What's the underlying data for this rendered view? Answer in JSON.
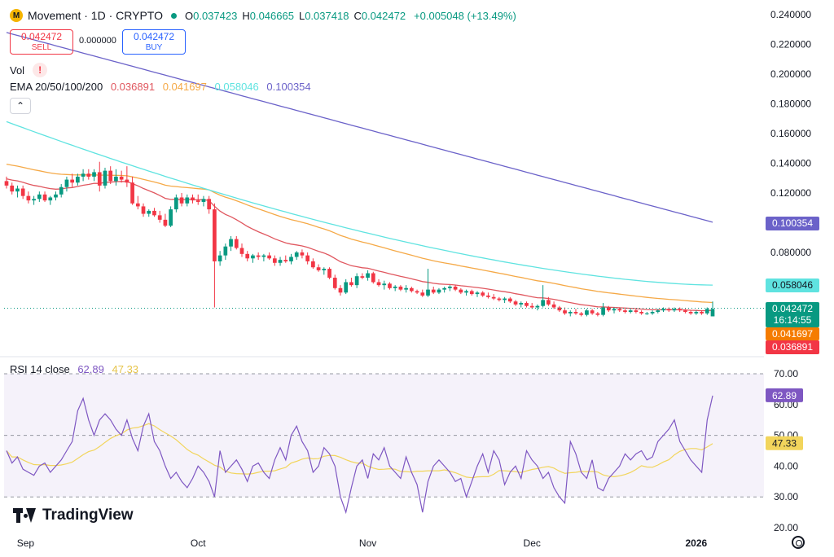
{
  "header": {
    "title": "Movement · 1D · CRYPTO",
    "open_label": "O",
    "open": "0.037423",
    "high_label": "H",
    "high": "0.046665",
    "low_label": "L",
    "low": "0.037418",
    "close_label": "C",
    "close": "0.042472",
    "change": "+0.005048 (+13.49%)",
    "logo_icon": "movement-logo-icon",
    "status_color": "#089981"
  },
  "trade": {
    "sell_price": "0.042472",
    "sell_label": "SELL",
    "spread": "0.000000",
    "buy_price": "0.042472",
    "buy_label": "BUY"
  },
  "volume": {
    "label": "Vol",
    "warning_icon": "!"
  },
  "ema_legend": {
    "label": "EMA 20/50/100/200",
    "v20": "0.036891",
    "v50": "0.041697",
    "v100": "0.058046",
    "v200": "0.100354"
  },
  "collapse_icon": "⌃",
  "rsi_legend": {
    "label": "RSI 14 close",
    "value": "62.89",
    "ma": "47.33"
  },
  "brand": "TradingView",
  "colors": {
    "up": "#089981",
    "down": "#f23645",
    "ema20": "#e0575f",
    "ema50": "#f5a947",
    "ema100": "#5fe3e0",
    "ema200": "#6b62c9",
    "rsi": "#7e57c2",
    "rsi_ma": "#f2d55c"
  },
  "chart_data": [
    {
      "type": "candlestick",
      "title": "Movement · 1D · CRYPTO",
      "x_ticks": [
        "Sep",
        "Oct",
        "Nov",
        "Dec",
        "2026"
      ],
      "y_ticks": [
        "0.240000",
        "0.220000",
        "0.200000",
        "0.180000",
        "0.160000",
        "0.140000",
        "0.120000",
        "0.100000",
        "0.080000"
      ],
      "ylim": [
        0.02,
        0.24
      ],
      "grid": false,
      "last_price_label": "0.042472",
      "countdown": "16:14:55",
      "ohlc_daily": [
        [
          0.128,
          0.131,
          0.123,
          0.125
        ],
        [
          0.125,
          0.127,
          0.119,
          0.121
        ],
        [
          0.121,
          0.125,
          0.117,
          0.123
        ],
        [
          0.123,
          0.125,
          0.116,
          0.118
        ],
        [
          0.118,
          0.121,
          0.113,
          0.115
        ],
        [
          0.115,
          0.118,
          0.112,
          0.116
        ],
        [
          0.116,
          0.121,
          0.114,
          0.119
        ],
        [
          0.119,
          0.121,
          0.114,
          0.115
        ],
        [
          0.115,
          0.118,
          0.112,
          0.117
        ],
        [
          0.117,
          0.121,
          0.115,
          0.119
        ],
        [
          0.119,
          0.126,
          0.117,
          0.124
        ],
        [
          0.124,
          0.131,
          0.121,
          0.129
        ],
        [
          0.129,
          0.133,
          0.124,
          0.127
        ],
        [
          0.127,
          0.133,
          0.125,
          0.131
        ],
        [
          0.131,
          0.136,
          0.128,
          0.133
        ],
        [
          0.133,
          0.136,
          0.129,
          0.131
        ],
        [
          0.131,
          0.136,
          0.128,
          0.134
        ],
        [
          0.134,
          0.141,
          0.121,
          0.125
        ],
        [
          0.125,
          0.137,
          0.123,
          0.135
        ],
        [
          0.135,
          0.138,
          0.126,
          0.128
        ],
        [
          0.128,
          0.136,
          0.125,
          0.131
        ],
        [
          0.131,
          0.135,
          0.127,
          0.129
        ],
        [
          0.129,
          0.138,
          0.124,
          0.127
        ],
        [
          0.127,
          0.131,
          0.112,
          0.113
        ],
        [
          0.113,
          0.118,
          0.109,
          0.111
        ],
        [
          0.111,
          0.113,
          0.104,
          0.106
        ],
        [
          0.106,
          0.109,
          0.104,
          0.108
        ],
        [
          0.108,
          0.11,
          0.104,
          0.105
        ],
        [
          0.105,
          0.108,
          0.1,
          0.102
        ],
        [
          0.102,
          0.106,
          0.097,
          0.098
        ],
        [
          0.098,
          0.111,
          0.097,
          0.109
        ],
        [
          0.109,
          0.119,
          0.107,
          0.117
        ],
        [
          0.117,
          0.12,
          0.111,
          0.113
        ],
        [
          0.113,
          0.119,
          0.111,
          0.117
        ],
        [
          0.117,
          0.119,
          0.113,
          0.115
        ],
        [
          0.115,
          0.119,
          0.112,
          0.114
        ],
        [
          0.114,
          0.118,
          0.111,
          0.116
        ],
        [
          0.116,
          0.118,
          0.106,
          0.109
        ],
        [
          0.109,
          0.113,
          0.043,
          0.074
        ],
        [
          0.074,
          0.081,
          0.071,
          0.078
        ],
        [
          0.078,
          0.086,
          0.075,
          0.084
        ],
        [
          0.084,
          0.091,
          0.081,
          0.089
        ],
        [
          0.089,
          0.091,
          0.082,
          0.083
        ],
        [
          0.083,
          0.086,
          0.077,
          0.079
        ],
        [
          0.079,
          0.081,
          0.074,
          0.076
        ],
        [
          0.076,
          0.079,
          0.073,
          0.078
        ],
        [
          0.078,
          0.08,
          0.075,
          0.077
        ],
        [
          0.077,
          0.079,
          0.074,
          0.078
        ],
        [
          0.078,
          0.08,
          0.075,
          0.076
        ],
        [
          0.076,
          0.078,
          0.071,
          0.073
        ],
        [
          0.073,
          0.077,
          0.071,
          0.075
        ],
        [
          0.075,
          0.078,
          0.073,
          0.074
        ],
        [
          0.074,
          0.079,
          0.072,
          0.077
        ],
        [
          0.077,
          0.081,
          0.075,
          0.08
        ],
        [
          0.08,
          0.082,
          0.076,
          0.078
        ],
        [
          0.078,
          0.08,
          0.072,
          0.074
        ],
        [
          0.074,
          0.076,
          0.069,
          0.07
        ],
        [
          0.07,
          0.072,
          0.067,
          0.068
        ],
        [
          0.068,
          0.07,
          0.065,
          0.069
        ],
        [
          0.069,
          0.07,
          0.062,
          0.063
        ],
        [
          0.063,
          0.065,
          0.055,
          0.056
        ],
        [
          0.056,
          0.058,
          0.051,
          0.053
        ],
        [
          0.053,
          0.062,
          0.052,
          0.06
        ],
        [
          0.06,
          0.063,
          0.057,
          0.058
        ],
        [
          0.058,
          0.066,
          0.056,
          0.064
        ],
        [
          0.064,
          0.066,
          0.062,
          0.063
        ],
        [
          0.063,
          0.068,
          0.061,
          0.066
        ],
        [
          0.066,
          0.067,
          0.059,
          0.06
        ],
        [
          0.06,
          0.062,
          0.057,
          0.058
        ],
        [
          0.058,
          0.061,
          0.055,
          0.059
        ],
        [
          0.059,
          0.06,
          0.055,
          0.056
        ],
        [
          0.056,
          0.058,
          0.054,
          0.057
        ],
        [
          0.057,
          0.058,
          0.054,
          0.055
        ],
        [
          0.055,
          0.058,
          0.053,
          0.056
        ],
        [
          0.056,
          0.057,
          0.053,
          0.054
        ],
        [
          0.054,
          0.055,
          0.052,
          0.053
        ],
        [
          0.053,
          0.055,
          0.05,
          0.051
        ],
        [
          0.051,
          0.069,
          0.05,
          0.055
        ],
        [
          0.055,
          0.057,
          0.052,
          0.053
        ],
        [
          0.053,
          0.056,
          0.052,
          0.055
        ],
        [
          0.055,
          0.057,
          0.053,
          0.056
        ],
        [
          0.056,
          0.058,
          0.054,
          0.057
        ],
        [
          0.057,
          0.058,
          0.054,
          0.055
        ],
        [
          0.055,
          0.056,
          0.052,
          0.053
        ],
        [
          0.053,
          0.055,
          0.051,
          0.054
        ],
        [
          0.054,
          0.055,
          0.051,
          0.052
        ],
        [
          0.052,
          0.054,
          0.05,
          0.053
        ],
        [
          0.053,
          0.054,
          0.05,
          0.051
        ],
        [
          0.051,
          0.053,
          0.049,
          0.05
        ],
        [
          0.05,
          0.052,
          0.048,
          0.049
        ],
        [
          0.049,
          0.05,
          0.047,
          0.048
        ],
        [
          0.048,
          0.05,
          0.046,
          0.049
        ],
        [
          0.049,
          0.05,
          0.046,
          0.047
        ],
        [
          0.047,
          0.048,
          0.044,
          0.045
        ],
        [
          0.045,
          0.047,
          0.043,
          0.046
        ],
        [
          0.046,
          0.047,
          0.043,
          0.044
        ],
        [
          0.044,
          0.046,
          0.042,
          0.043
        ],
        [
          0.043,
          0.045,
          0.041,
          0.044
        ],
        [
          0.044,
          0.058,
          0.043,
          0.048
        ],
        [
          0.048,
          0.05,
          0.044,
          0.045
        ],
        [
          0.045,
          0.047,
          0.042,
          0.043
        ],
        [
          0.043,
          0.044,
          0.04,
          0.041
        ],
        [
          0.041,
          0.043,
          0.038,
          0.039
        ],
        [
          0.039,
          0.041,
          0.037,
          0.04
        ],
        [
          0.04,
          0.042,
          0.038,
          0.039
        ],
        [
          0.039,
          0.04,
          0.037,
          0.038
        ],
        [
          0.038,
          0.042,
          0.037,
          0.041
        ],
        [
          0.041,
          0.042,
          0.038,
          0.039
        ],
        [
          0.039,
          0.04,
          0.037,
          0.038
        ],
        [
          0.038,
          0.046,
          0.037,
          0.043
        ],
        [
          0.043,
          0.044,
          0.04,
          0.041
        ],
        [
          0.041,
          0.043,
          0.039,
          0.042
        ],
        [
          0.042,
          0.043,
          0.04,
          0.041
        ],
        [
          0.041,
          0.042,
          0.039,
          0.04
        ],
        [
          0.04,
          0.042,
          0.039,
          0.041
        ],
        [
          0.041,
          0.042,
          0.039,
          0.04
        ],
        [
          0.04,
          0.041,
          0.038,
          0.039
        ],
        [
          0.039,
          0.04,
          0.038,
          0.039
        ],
        [
          0.039,
          0.041,
          0.038,
          0.04
        ],
        [
          0.04,
          0.042,
          0.039,
          0.041
        ],
        [
          0.041,
          0.043,
          0.04,
          0.042
        ],
        [
          0.042,
          0.043,
          0.04,
          0.041
        ],
        [
          0.041,
          0.043,
          0.04,
          0.042
        ],
        [
          0.042,
          0.043,
          0.04,
          0.041
        ],
        [
          0.041,
          0.042,
          0.039,
          0.04
        ],
        [
          0.04,
          0.041,
          0.038,
          0.039
        ],
        [
          0.039,
          0.041,
          0.038,
          0.04
        ],
        [
          0.04,
          0.041,
          0.038,
          0.039
        ],
        [
          0.039,
          0.043,
          0.038,
          0.042
        ],
        [
          0.037,
          0.047,
          0.037,
          0.042
        ]
      ],
      "ema_series": [
        {
          "name": "EMA 20",
          "start": 0.13,
          "end": 0.036891
        },
        {
          "name": "EMA 50",
          "start": 0.14,
          "end": 0.041697
        },
        {
          "name": "EMA 100",
          "start": 0.168,
          "end": 0.058046
        },
        {
          "name": "EMA 200",
          "start": 0.228,
          "end": 0.100354
        }
      ]
    },
    {
      "type": "line",
      "title": "RSI 14 close",
      "y_ticks": [
        "70.00",
        "60.00",
        "50.00",
        "40.00",
        "30.00",
        "20.00"
      ],
      "ylim": [
        17,
        73
      ],
      "bands": [
        30,
        50,
        70
      ],
      "series": [
        {
          "name": "RSI",
          "values": [
            45,
            41,
            43,
            39,
            38,
            37,
            40,
            41,
            38,
            40,
            42,
            45,
            48,
            58,
            62,
            55,
            50,
            55,
            57,
            55,
            52,
            50,
            55,
            49,
            45,
            53,
            57,
            48,
            45,
            40,
            36,
            38,
            35,
            33,
            36,
            40,
            38,
            35,
            30,
            45,
            38,
            40,
            42,
            39,
            35,
            40,
            41,
            38,
            36,
            42,
            46,
            42,
            50,
            53,
            48,
            45,
            38,
            40,
            46,
            44,
            40,
            30,
            25,
            33,
            40,
            42,
            36,
            44,
            42,
            46,
            40,
            38,
            36,
            43,
            38,
            34,
            25,
            35,
            40,
            42,
            40,
            38,
            35,
            36,
            30,
            35,
            40,
            44,
            38,
            45,
            42,
            34,
            38,
            40,
            36,
            45,
            42,
            40,
            36,
            38,
            33,
            30,
            28,
            48,
            44,
            38,
            36,
            42,
            33,
            32,
            36,
            38,
            40,
            44,
            42,
            44,
            45,
            42,
            43,
            48,
            50,
            52,
            55,
            48,
            45,
            42,
            40,
            38,
            55,
            62.89
          ]
        },
        {
          "name": "RSI MA",
          "values": []
        }
      ],
      "rsi_ma_last": "47.33",
      "rsi_last": "62.89"
    }
  ]
}
